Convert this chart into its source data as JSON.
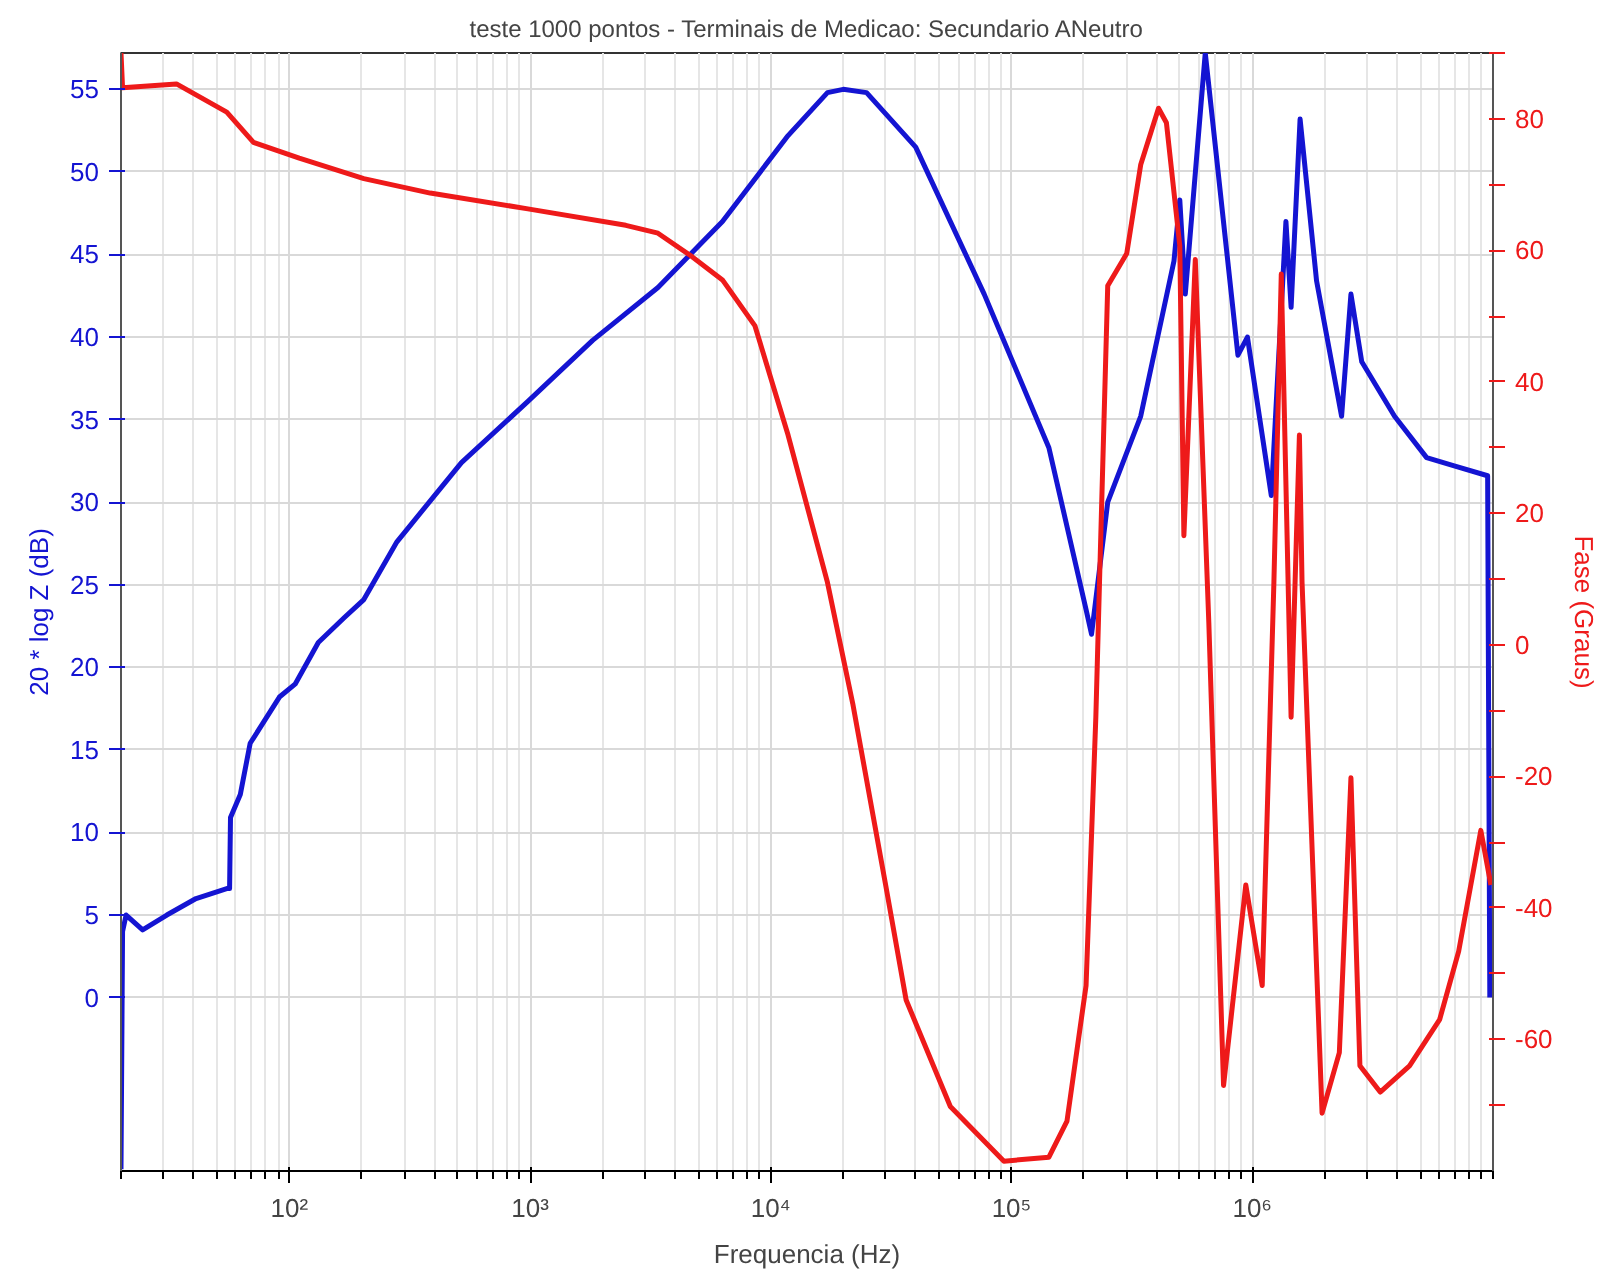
{
  "chart_data": {
    "type": "line",
    "title": "teste 1000 pontos - Terminais de Medicao: Secundario ANeutro",
    "xlabel": "Frequencia (Hz)",
    "ylabel": "20 * log Z (dB)",
    "y2label": "Fase (Graus)",
    "log": "x",
    "grid": true,
    "line_style": "solid",
    "marker": "none",
    "xlim": [
      20,
      10000000
    ],
    "xticks": [
      {
        "value": 100,
        "label": "10²"
      },
      {
        "value": 1000,
        "label": "10³"
      },
      {
        "value": 10000,
        "label": "10⁴"
      },
      {
        "value": 100000,
        "label": "10⁵"
      },
      {
        "value": 1000000,
        "label": "10⁶"
      }
    ],
    "ylim": [
      -10.5,
      57.2
    ],
    "yticks": [
      0,
      5,
      10,
      15,
      20,
      25,
      30,
      35,
      40,
      45,
      50,
      55
    ],
    "y2lim": [
      -80,
      90
    ],
    "y2ticks": [
      {
        "value": -70,
        "label": null
      },
      -60,
      {
        "value": -50,
        "label": null
      },
      -40,
      {
        "value": -30,
        "label": null
      },
      -20,
      {
        "value": -10,
        "label": null
      },
      0,
      {
        "value": 10,
        "label": null
      },
      20,
      {
        "value": 30,
        "label": null
      },
      40,
      {
        "value": 50,
        "label": null
      },
      60,
      {
        "value": 70,
        "label": null
      },
      80,
      {
        "value": 90,
        "label": null
      }
    ],
    "series": [
      {
        "color": "#1414d2",
        "x": [
          20,
          20.3,
          21,
          24.6,
          31,
          41,
          55,
          56.5,
          57,
          62.6,
          68.8,
          91,
          106,
          132,
          169,
          204,
          280,
          519,
          980,
          1820,
          3400,
          6300,
          11800,
          17200,
          20000,
          25000,
          40000,
          77000,
          143000,
          204000,
          215000,
          251000,
          344000,
          473000,
          500000,
          527000,
          638000,
          872000,
          955000,
          1200000,
          1380000,
          1450000,
          1580000,
          1850000,
          2350000,
          2570000,
          2850000,
          3900000,
          5300000,
          6900000,
          9500000,
          9700000
        ],
        "values": [
          -10.4,
          4,
          5,
          4.1,
          5,
          6,
          6.6,
          6.6,
          10.9,
          12.3,
          15.4,
          18.2,
          19,
          21.5,
          23,
          24.1,
          27.6,
          32.4,
          36.1,
          39.8,
          43,
          47,
          52.2,
          54.8,
          55,
          54.8,
          51.5,
          42.6,
          33.3,
          23.5,
          22,
          30,
          35.2,
          44.6,
          48.3,
          42.6,
          57.2,
          38.9,
          40,
          30.4,
          47,
          41.8,
          53.2,
          43.4,
          35.2,
          42.6,
          38.5,
          35.2,
          32.7,
          32.2,
          31.6,
          0
        ]
      },
      {
        "color": "#ee1a1a",
        "axis": "y2",
        "x": [
          20,
          20.3,
          34,
          55,
          71,
          110,
          204,
          385,
          980,
          2500,
          3400,
          4640,
          6300,
          8600,
          11800,
          17200,
          21900,
          30000,
          36500,
          55700,
          93000,
          143000,
          170000,
          204000,
          224000,
          232000,
          251000,
          301000,
          344000,
          408000,
          440000,
          500000,
          520000,
          580000,
          660000,
          760000,
          940000,
          1100000,
          1230000,
          1320000,
          1450000,
          1570000,
          1610000,
          1950000,
          2300000,
          2570000,
          2800000,
          3400000,
          4500000,
          6000000,
          7200000,
          8900000,
          9800000
        ],
        "values": [
          90,
          84.7,
          85.3,
          81,
          76.4,
          74,
          70.9,
          68.7,
          66.3,
          63.8,
          62.6,
          59.2,
          55.5,
          48.5,
          31.9,
          9.5,
          -8.9,
          -36.5,
          -54,
          -70.2,
          -78.5,
          -77.9,
          -72.4,
          -51.8,
          -11,
          9.5,
          54.6,
          59.5,
          73,
          81.6,
          79.4,
          60.7,
          16.6,
          58.6,
          3.4,
          -67,
          -36.5,
          -51.8,
          9.5,
          56.4,
          -11,
          31.9,
          9.5,
          -71.2,
          -62,
          -20.2,
          -64,
          -68,
          -64,
          -57,
          -46.6,
          -28.2,
          -36.5
        ]
      }
    ]
  }
}
